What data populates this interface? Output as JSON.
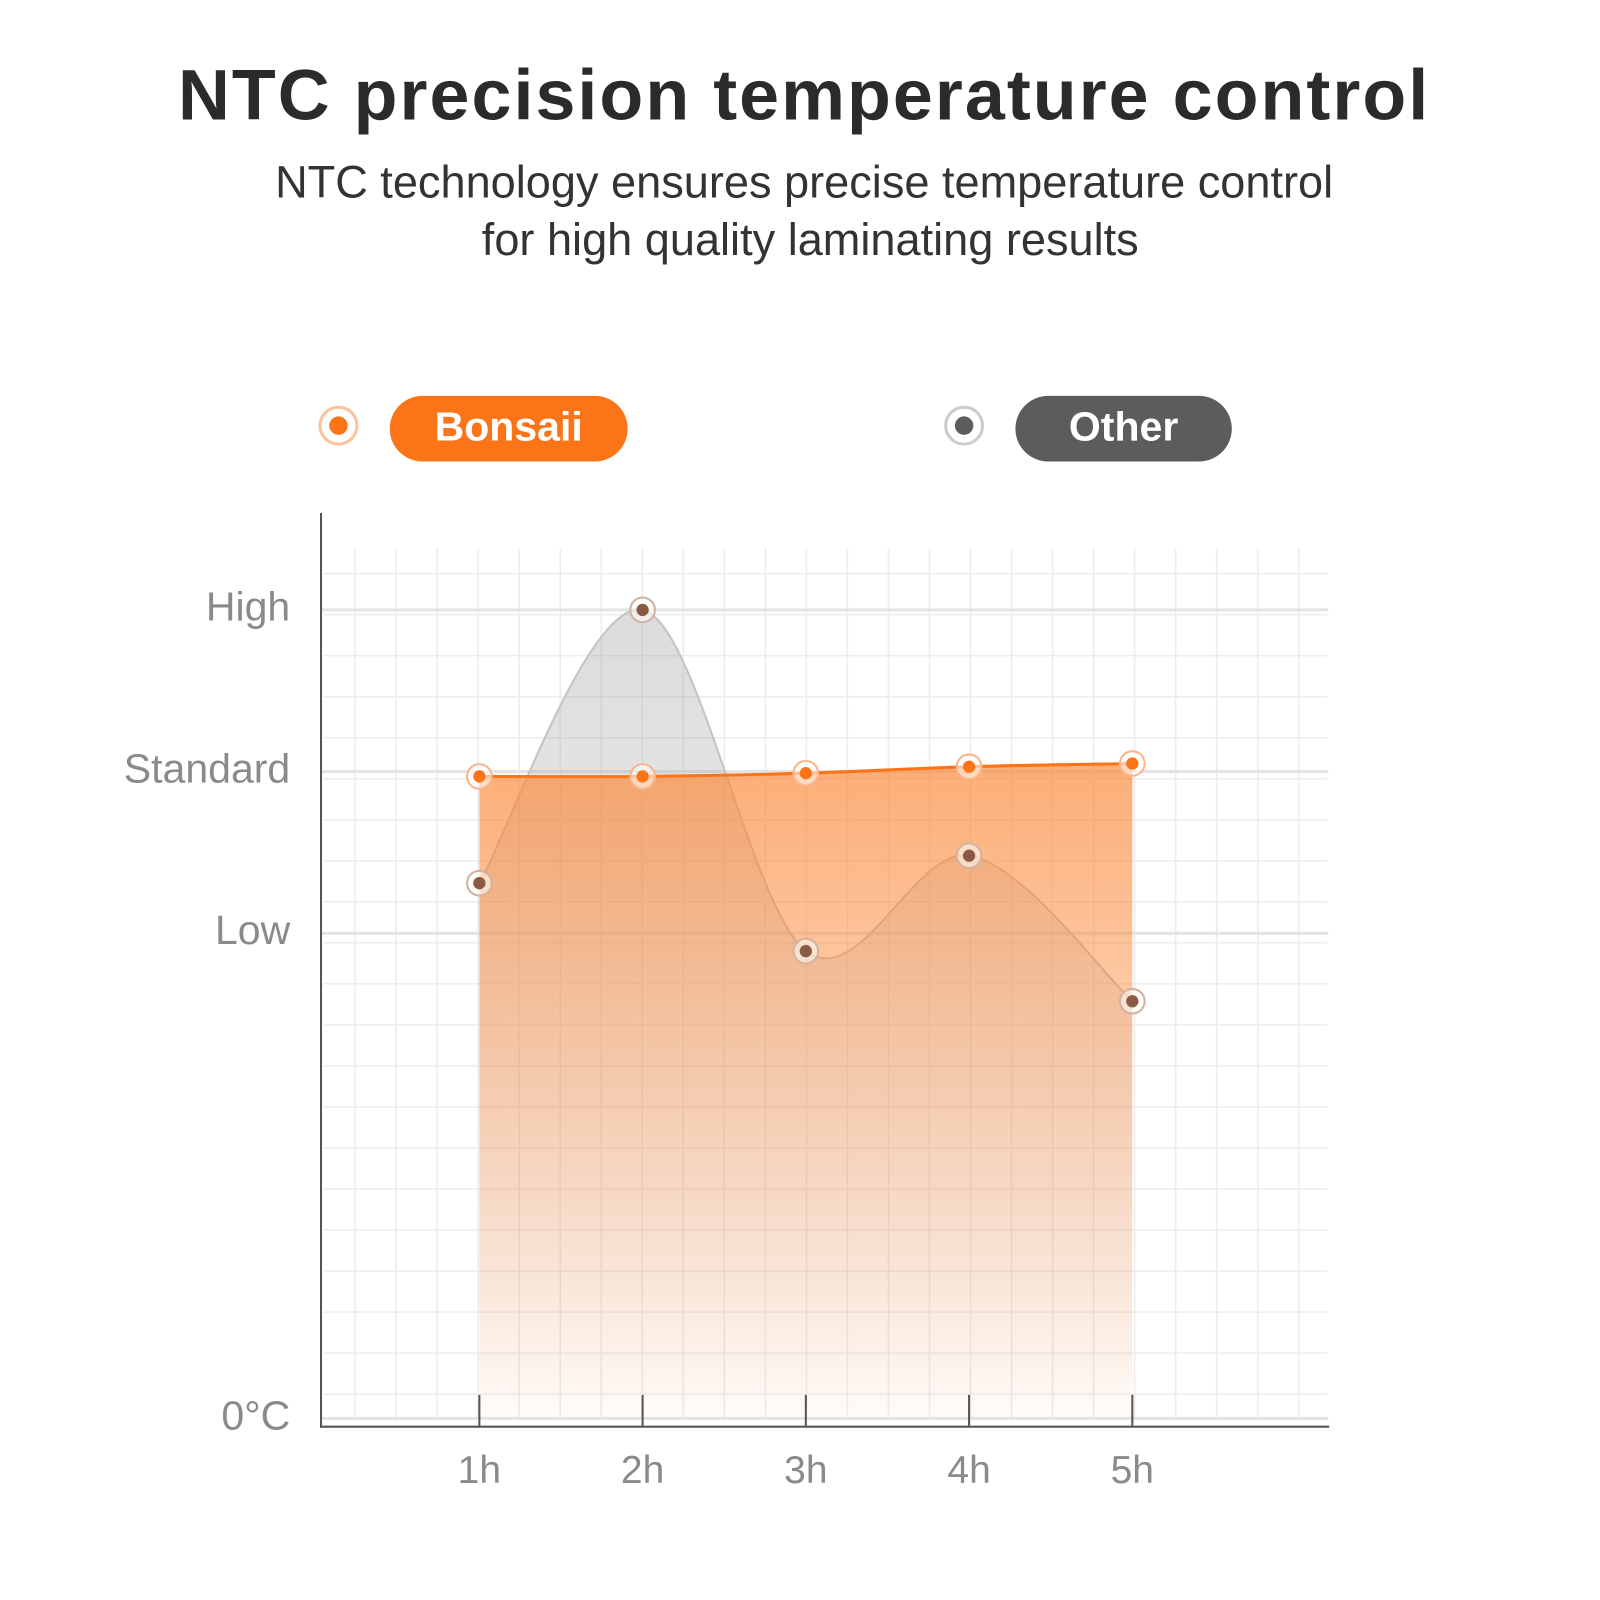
{
  "title": "NTC precision temperature control",
  "subtitle": [
    "NTC technology ensures precise temperature control",
    "for high quality laminating results"
  ],
  "chart_data": {
    "type": "line",
    "x": [
      1,
      2,
      3,
      4,
      5
    ],
    "xlim": [
      0.03,
      6.2
    ],
    "xticks": [
      {
        "value": 1,
        "label": "1h"
      },
      {
        "value": 2,
        "label": "2h"
      },
      {
        "value": 3,
        "label": "3h"
      },
      {
        "value": 4,
        "label": "4h"
      },
      {
        "value": 5,
        "label": "5h"
      }
    ],
    "ylim": [
      0,
      5.6
    ],
    "yticks": [
      {
        "value": 0,
        "label": "0°C"
      },
      {
        "value": 3,
        "label": "Low"
      },
      {
        "value": 4,
        "label": "Standard"
      },
      {
        "value": 5,
        "label": "High"
      }
    ],
    "grid": true,
    "series": [
      {
        "name": "Bonsaii",
        "color": "#fc7418",
        "values": [
          3.97,
          3.97,
          3.99,
          4.03,
          4.05
        ]
      },
      {
        "name": "Other",
        "color": "#5c5c5c",
        "values": [
          3.31,
          5.0,
          2.89,
          3.48,
          2.58
        ]
      }
    ]
  }
}
